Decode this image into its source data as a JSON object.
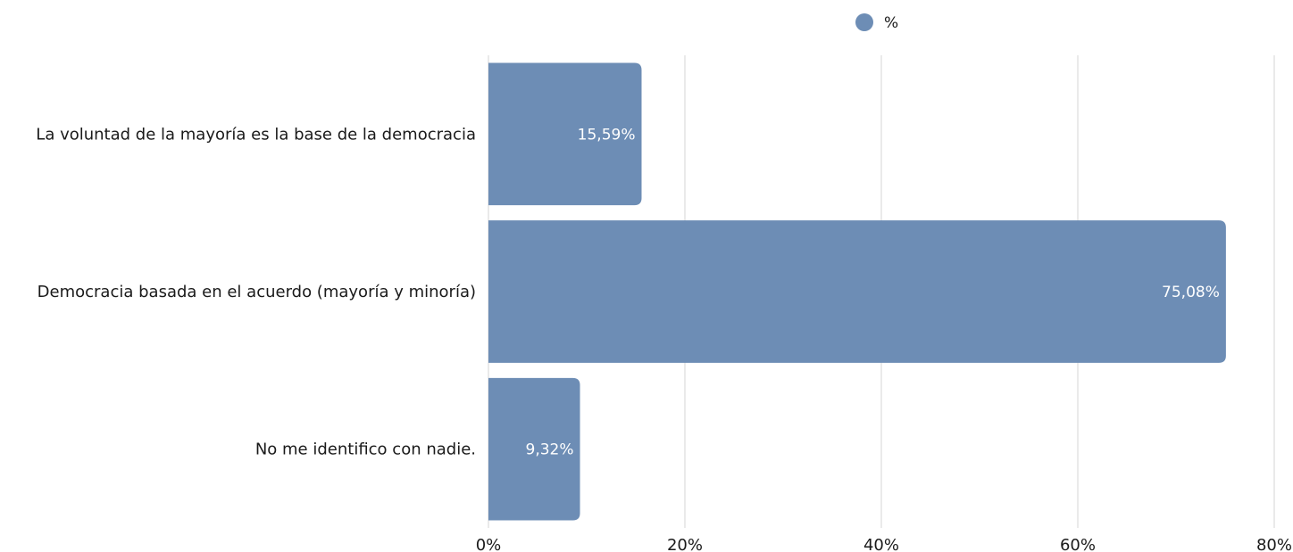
{
  "chart_data": {
    "type": "bar",
    "orientation": "horizontal",
    "categories": [
      "La voluntad de la mayoría es la base de la democracia",
      "Democracia basada en el acuerdo (mayoría y minoría)",
      "No me identifico con nadie."
    ],
    "series": [
      {
        "name": "%",
        "values": [
          15.59,
          75.08,
          9.32
        ]
      }
    ],
    "data_labels": [
      "15,59%",
      "75,08%",
      "9,32%"
    ],
    "x_ticks": [
      "0%",
      "20%",
      "40%",
      "60%",
      "80%"
    ],
    "xlim": [
      0,
      80
    ],
    "grid": "vertical",
    "legend_position": "top-center",
    "title": "",
    "xlabel": "",
    "ylabel": "",
    "colors": {
      "bar": "#6d8db5",
      "grid": "#d6d6d6",
      "text": "#1a1a1a",
      "data_label": "#ffffff"
    }
  }
}
